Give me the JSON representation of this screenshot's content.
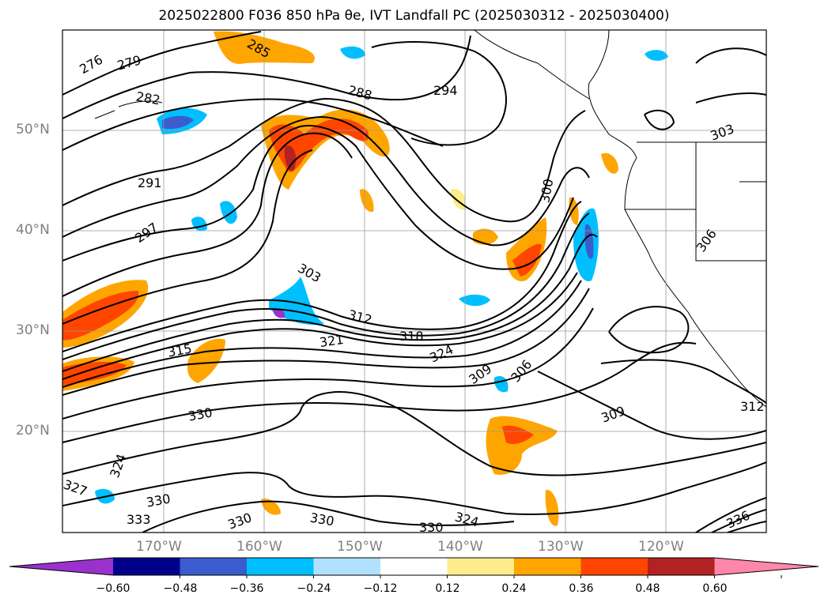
{
  "title": "2025022800 F036 850 hPa θe, IVT Landfall PC (2025030312 - 2025030400)",
  "lat_ticks": [
    "50°N",
    "40°N",
    "30°N",
    "20°N"
  ],
  "lon_ticks": [
    "170°W",
    "160°W",
    "150°W",
    "140°W",
    "130°W",
    "120°W"
  ],
  "contour_labels": [
    "276",
    "279",
    "282",
    "285",
    "288",
    "291",
    "294",
    "297",
    "300",
    "303",
    "306",
    "309",
    "312",
    "315",
    "318",
    "321",
    "324",
    "327",
    "330",
    "333",
    "336"
  ],
  "colorbar": {
    "ticks": [
      "−0.60",
      "−0.48",
      "−0.36",
      "−0.24",
      "−0.12",
      "0.12",
      "0.24",
      "0.36",
      "0.48",
      "0.60"
    ],
    "colors": [
      "#9932cc",
      "#00008b",
      "#3a5ccc",
      "#00bfff",
      "#b0e2ff",
      "#ffffff",
      "#ffec8b",
      "#ffa500",
      "#ff4500",
      "#b22222",
      "#ff88aa"
    ]
  }
}
